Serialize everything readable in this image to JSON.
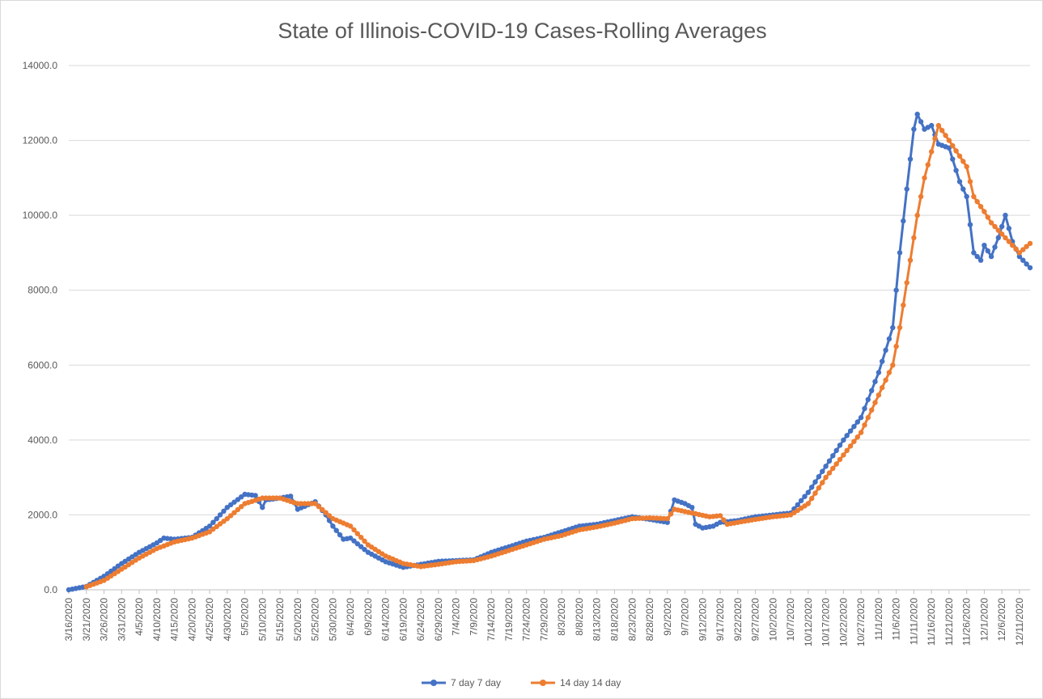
{
  "chart_data": {
    "type": "line",
    "title": "State of Illinois-COVID-19 Cases-Rolling Averages",
    "xlabel": "",
    "ylabel": "",
    "ylim": [
      0,
      14000
    ],
    "yticks": [
      "0.0",
      "2000.0",
      "4000.0",
      "6000.0",
      "8000.0",
      "10000.0",
      "12000.0",
      "14000.0"
    ],
    "x_start": "3/16/2020",
    "x_end": "12/14/2020",
    "xtick_labels": [
      "3/16/2020",
      "3/21/2020",
      "3/26/2020",
      "3/31/2020",
      "4/5/2020",
      "4/10/2020",
      "4/15/2020",
      "4/20/2020",
      "4/25/2020",
      "4/30/2020",
      "5/5/2020",
      "5/10/2020",
      "5/15/2020",
      "5/20/2020",
      "5/25/2020",
      "5/30/2020",
      "6/4/2020",
      "6/9/2020",
      "6/14/2020",
      "6/19/2020",
      "6/24/2020",
      "6/29/2020",
      "7/4/2020",
      "7/9/2020",
      "7/14/2020",
      "7/19/2020",
      "7/24/2020",
      "7/29/2020",
      "8/3/2020",
      "8/8/2020",
      "8/13/2020",
      "8/18/2020",
      "8/23/2020",
      "8/28/2020",
      "9/2/2020",
      "9/7/2020",
      "9/12/2020",
      "9/17/2020",
      "9/22/2020",
      "9/27/2020",
      "10/2/2020",
      "10/7/2020",
      "10/12/2020",
      "10/17/2020",
      "10/22/2020",
      "10/27/2020",
      "11/1/2020",
      "11/6/2020",
      "11/11/2020",
      "11/16/2020",
      "11/21/2020",
      "11/26/2020",
      "12/1/2020",
      "12/6/2020",
      "12/11/2020"
    ],
    "grid": true,
    "legend_position": "bottom",
    "series": [
      {
        "name": "7 day  7 day",
        "color": "#4472c4",
        "points": [
          [
            "3/16/2020",
            0
          ],
          [
            "3/21/2020",
            90
          ],
          [
            "3/26/2020",
            360
          ],
          [
            "3/31/2020",
            700
          ],
          [
            "4/5/2020",
            1000
          ],
          [
            "4/10/2020",
            1250
          ],
          [
            "4/12/2020",
            1380
          ],
          [
            "4/15/2020",
            1350
          ],
          [
            "4/20/2020",
            1400
          ],
          [
            "4/25/2020",
            1700
          ],
          [
            "4/30/2020",
            2200
          ],
          [
            "5/5/2020",
            2550
          ],
          [
            "5/8/2020",
            2520
          ],
          [
            "5/10/2020",
            2200
          ],
          [
            "5/11/2020",
            2400
          ],
          [
            "5/15/2020",
            2450
          ],
          [
            "5/18/2020",
            2500
          ],
          [
            "5/20/2020",
            2150
          ],
          [
            "5/25/2020",
            2350
          ],
          [
            "5/28/2020",
            2000
          ],
          [
            "5/30/2020",
            1700
          ],
          [
            "6/2/2020",
            1350
          ],
          [
            "6/4/2020",
            1380
          ],
          [
            "6/9/2020",
            1000
          ],
          [
            "6/14/2020",
            750
          ],
          [
            "6/19/2020",
            600
          ],
          [
            "6/24/2020",
            680
          ],
          [
            "6/29/2020",
            760
          ],
          [
            "7/4/2020",
            780
          ],
          [
            "7/9/2020",
            800
          ],
          [
            "7/14/2020",
            1000
          ],
          [
            "7/19/2020",
            1150
          ],
          [
            "7/24/2020",
            1300
          ],
          [
            "7/29/2020",
            1400
          ],
          [
            "8/3/2020",
            1550
          ],
          [
            "8/8/2020",
            1700
          ],
          [
            "8/13/2020",
            1750
          ],
          [
            "8/18/2020",
            1850
          ],
          [
            "8/23/2020",
            1950
          ],
          [
            "8/28/2020",
            1880
          ],
          [
            "9/2/2020",
            1800
          ],
          [
            "9/4/2020",
            2400
          ],
          [
            "9/7/2020",
            2300
          ],
          [
            "9/9/2020",
            2200
          ],
          [
            "9/10/2020",
            1750
          ],
          [
            "9/12/2020",
            1650
          ],
          [
            "9/15/2020",
            1700
          ],
          [
            "9/17/2020",
            1800
          ],
          [
            "9/22/2020",
            1850
          ],
          [
            "9/27/2020",
            1950
          ],
          [
            "10/2/2020",
            2000
          ],
          [
            "10/7/2020",
            2050
          ],
          [
            "10/12/2020",
            2600
          ],
          [
            "10/17/2020",
            3300
          ],
          [
            "10/22/2020",
            4000
          ],
          [
            "10/27/2020",
            4600
          ],
          [
            "11/1/2020",
            5800
          ],
          [
            "11/5/2020",
            7000
          ],
          [
            "11/7/2020",
            9000
          ],
          [
            "11/9/2020",
            10700
          ],
          [
            "11/11/2020",
            12300
          ],
          [
            "11/12/2020",
            12700
          ],
          [
            "11/14/2020",
            12300
          ],
          [
            "11/16/2020",
            12400
          ],
          [
            "11/18/2020",
            11900
          ],
          [
            "11/21/2020",
            11800
          ],
          [
            "11/24/2020",
            10900
          ],
          [
            "11/26/2020",
            10500
          ],
          [
            "11/28/2020",
            9000
          ],
          [
            "11/30/2020",
            8800
          ],
          [
            "12/1/2020",
            9200
          ],
          [
            "12/3/2020",
            8900
          ],
          [
            "12/5/2020",
            9400
          ],
          [
            "12/7/2020",
            10000
          ],
          [
            "12/9/2020",
            9300
          ],
          [
            "12/11/2020",
            8900
          ],
          [
            "12/14/2020",
            8600
          ]
        ]
      },
      {
        "name": "14 day 14 day",
        "color": "#ed7d31",
        "points": [
          [
            "3/21/2020",
            80
          ],
          [
            "3/26/2020",
            250
          ],
          [
            "3/31/2020",
            550
          ],
          [
            "4/5/2020",
            850
          ],
          [
            "4/10/2020",
            1100
          ],
          [
            "4/15/2020",
            1280
          ],
          [
            "4/20/2020",
            1380
          ],
          [
            "4/25/2020",
            1550
          ],
          [
            "4/30/2020",
            1900
          ],
          [
            "5/5/2020",
            2300
          ],
          [
            "5/10/2020",
            2450
          ],
          [
            "5/15/2020",
            2450
          ],
          [
            "5/20/2020",
            2300
          ],
          [
            "5/25/2020",
            2300
          ],
          [
            "5/30/2020",
            1900
          ],
          [
            "6/4/2020",
            1700
          ],
          [
            "6/9/2020",
            1200
          ],
          [
            "6/14/2020",
            900
          ],
          [
            "6/19/2020",
            700
          ],
          [
            "6/24/2020",
            620
          ],
          [
            "6/29/2020",
            680
          ],
          [
            "7/4/2020",
            750
          ],
          [
            "7/9/2020",
            780
          ],
          [
            "7/14/2020",
            900
          ],
          [
            "7/19/2020",
            1050
          ],
          [
            "7/24/2020",
            1200
          ],
          [
            "7/29/2020",
            1350
          ],
          [
            "8/3/2020",
            1450
          ],
          [
            "8/8/2020",
            1600
          ],
          [
            "8/13/2020",
            1680
          ],
          [
            "8/18/2020",
            1780
          ],
          [
            "8/23/2020",
            1900
          ],
          [
            "8/28/2020",
            1920
          ],
          [
            "9/2/2020",
            1900
          ],
          [
            "9/4/2020",
            2150
          ],
          [
            "9/9/2020",
            2050
          ],
          [
            "9/14/2020",
            1950
          ],
          [
            "9/17/2020",
            1980
          ],
          [
            "9/19/2020",
            1750
          ],
          [
            "9/22/2020",
            1800
          ],
          [
            "9/27/2020",
            1880
          ],
          [
            "10/2/2020",
            1950
          ],
          [
            "10/7/2020",
            2000
          ],
          [
            "10/12/2020",
            2300
          ],
          [
            "10/17/2020",
            3000
          ],
          [
            "10/22/2020",
            3600
          ],
          [
            "10/27/2020",
            4200
          ],
          [
            "11/1/2020",
            5200
          ],
          [
            "11/5/2020",
            6000
          ],
          [
            "11/7/2020",
            7000
          ],
          [
            "11/10/2020",
            8800
          ],
          [
            "11/12/2020",
            10000
          ],
          [
            "11/14/2020",
            11000
          ],
          [
            "11/16/2020",
            11700
          ],
          [
            "11/18/2020",
            12400
          ],
          [
            "11/21/2020",
            12000
          ],
          [
            "11/26/2020",
            11300
          ],
          [
            "11/28/2020",
            10500
          ],
          [
            "12/1/2020",
            10100
          ],
          [
            "12/3/2020",
            9800
          ],
          [
            "12/6/2020",
            9500
          ],
          [
            "12/9/2020",
            9200
          ],
          [
            "12/11/2020",
            9000
          ],
          [
            "12/14/2020",
            9250
          ]
        ]
      }
    ]
  }
}
